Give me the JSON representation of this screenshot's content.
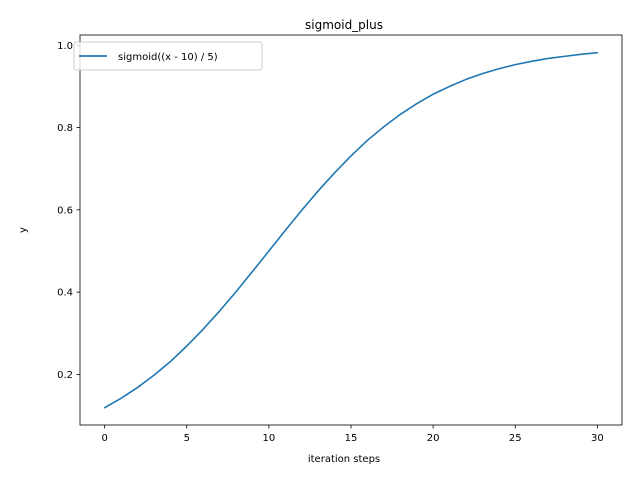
{
  "chart_data": {
    "type": "line",
    "title": "sigmoid_plus",
    "xlabel": "iteration steps",
    "ylabel": "y",
    "xlim": [
      -1.5,
      31.5
    ],
    "ylim": [
      0.077,
      1.025
    ],
    "xticks": [
      0,
      5,
      10,
      15,
      20,
      25,
      30
    ],
    "yticks": [
      0.2,
      0.4,
      0.6,
      0.8,
      1.0
    ],
    "xtick_labels": [
      "0",
      "5",
      "10",
      "15",
      "20",
      "25",
      "30"
    ],
    "ytick_labels": [
      "0.2",
      "0.4",
      "0.6",
      "0.8",
      "1.0"
    ],
    "grid": false,
    "legend_position": "upper-left",
    "series": [
      {
        "name": "sigmoid((x - 10) / 5)",
        "color": "#1f77b4",
        "x": [
          0,
          1,
          2,
          3,
          4,
          5,
          6,
          7,
          8,
          9,
          10,
          11,
          12,
          13,
          14,
          15,
          16,
          17,
          18,
          19,
          20,
          21,
          22,
          23,
          24,
          25,
          26,
          27,
          28,
          29,
          30
        ],
        "y": [
          0.119,
          0.142,
          0.168,
          0.198,
          0.231,
          0.269,
          0.31,
          0.354,
          0.401,
          0.45,
          0.5,
          0.55,
          0.599,
          0.646,
          0.69,
          0.731,
          0.769,
          0.802,
          0.832,
          0.858,
          0.881,
          0.9,
          0.917,
          0.931,
          0.943,
          0.953,
          0.961,
          0.968,
          0.973,
          0.978,
          0.982
        ]
      }
    ]
  }
}
